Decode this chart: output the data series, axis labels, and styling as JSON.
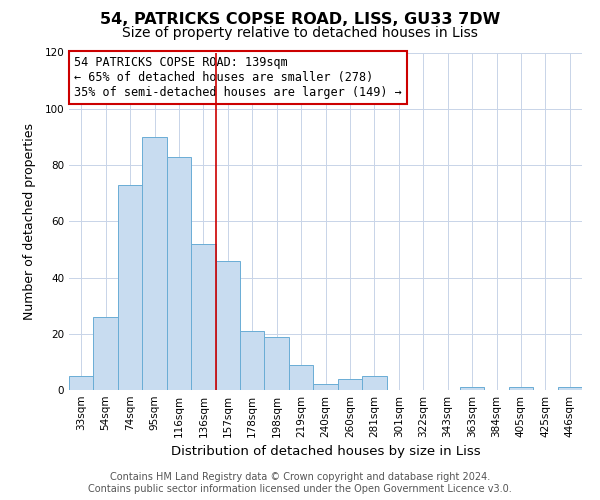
{
  "title": "54, PATRICKS COPSE ROAD, LISS, GU33 7DW",
  "subtitle": "Size of property relative to detached houses in Liss",
  "xlabel": "Distribution of detached houses by size in Liss",
  "ylabel": "Number of detached properties",
  "bar_labels": [
    "33sqm",
    "54sqm",
    "74sqm",
    "95sqm",
    "116sqm",
    "136sqm",
    "157sqm",
    "178sqm",
    "198sqm",
    "219sqm",
    "240sqm",
    "260sqm",
    "281sqm",
    "301sqm",
    "322sqm",
    "343sqm",
    "363sqm",
    "384sqm",
    "405sqm",
    "425sqm",
    "446sqm"
  ],
  "bar_values": [
    5,
    26,
    73,
    90,
    83,
    52,
    46,
    21,
    19,
    9,
    2,
    4,
    5,
    0,
    0,
    0,
    1,
    0,
    1,
    0,
    1
  ],
  "bar_color": "#c8dcf0",
  "bar_edge_color": "#6aadd5",
  "vline_x": 5.5,
  "vline_color": "#cc0000",
  "ylim": [
    0,
    120
  ],
  "yticks": [
    0,
    20,
    40,
    60,
    80,
    100,
    120
  ],
  "annotation_title": "54 PATRICKS COPSE ROAD: 139sqm",
  "annotation_line1": "← 65% of detached houses are smaller (278)",
  "annotation_line2": "35% of semi-detached houses are larger (149) →",
  "annotation_box_color": "#ffffff",
  "annotation_box_edge": "#cc0000",
  "footer_line1": "Contains HM Land Registry data © Crown copyright and database right 2024.",
  "footer_line2": "Contains public sector information licensed under the Open Government Licence v3.0.",
  "background_color": "#ffffff",
  "grid_color": "#c8d4e8",
  "title_fontsize": 11.5,
  "subtitle_fontsize": 10,
  "xlabel_fontsize": 9.5,
  "ylabel_fontsize": 9,
  "tick_fontsize": 7.5,
  "footer_fontsize": 7
}
